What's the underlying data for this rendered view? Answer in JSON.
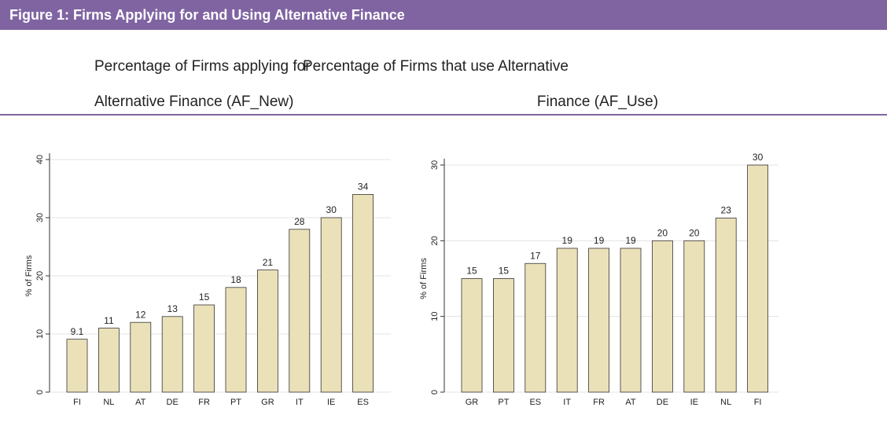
{
  "header": {
    "title": "Figure 1: Firms Applying for and Using Alternative Finance"
  },
  "chart_data": [
    {
      "type": "bar",
      "title": [
        "Percentage of Firms applying for",
        "Alternative Finance (AF_New)"
      ],
      "y_label": "% of Firms",
      "categories": [
        "FI",
        "NL",
        "AT",
        "DE",
        "FR",
        "PT",
        "GR",
        "IT",
        "IE",
        "ES"
      ],
      "values": [
        9.1,
        11,
        12,
        13,
        15,
        18,
        21,
        28,
        30,
        34
      ],
      "color": "#ebe1b9",
      "ylim": [
        0,
        40
      ],
      "yticks": [
        0,
        10,
        20,
        30,
        40
      ],
      "grid": true
    },
    {
      "type": "bar",
      "title": [
        "Percentage of Firms that use Alternative",
        "Finance (AF_Use)"
      ],
      "y_label": "% of Firms",
      "categories": [
        "GR",
        "PT",
        "ES",
        "IT",
        "FR",
        "AT",
        "DE",
        "IE",
        "NL",
        "FI"
      ],
      "values": [
        15,
        15,
        17,
        19,
        19,
        19,
        20,
        20,
        23,
        30
      ],
      "color": "#ebe1b9",
      "ylim": [
        0,
        30
      ],
      "yticks": [
        0,
        10,
        20,
        30
      ],
      "grid": true
    }
  ]
}
